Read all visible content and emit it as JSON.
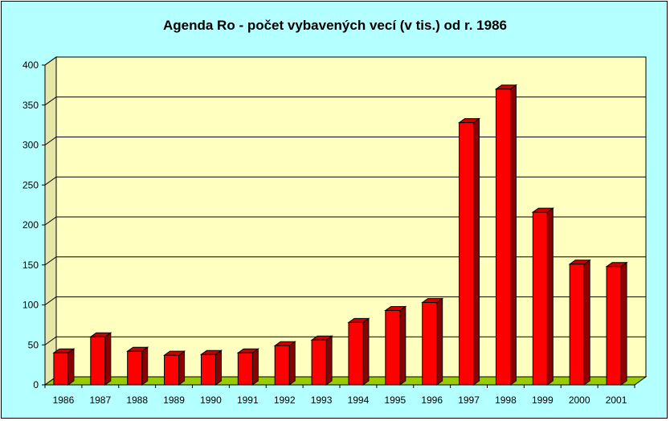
{
  "chart_data": {
    "type": "bar",
    "title": "Agenda Ro - počet vybavených vecí (v tis.) od r. 1986",
    "xlabel": "",
    "ylabel": "",
    "categories": [
      "1986",
      "1987",
      "1988",
      "1989",
      "1990",
      "1991",
      "1992",
      "1993",
      "1994",
      "1995",
      "1996",
      "1997",
      "1998",
      "1999",
      "2000",
      "2001"
    ],
    "series": [
      {
        "values": [
          40,
          60,
          42,
          37,
          38,
          40,
          49,
          56,
          78,
          93,
          103,
          328,
          370,
          216,
          151,
          148
        ]
      }
    ],
    "ylim": [
      0,
      400
    ],
    "yticks": [
      0,
      50,
      100,
      150,
      200,
      250,
      300,
      350,
      400
    ],
    "grid": true,
    "legend": "none",
    "colors": {
      "background": "#b4ffff",
      "plot_wall": "#ffffc0",
      "floor": "#99cc00",
      "bar_front": "#ff0000",
      "bar_side": "#8c0000",
      "bar_top": "#cc0000"
    }
  }
}
